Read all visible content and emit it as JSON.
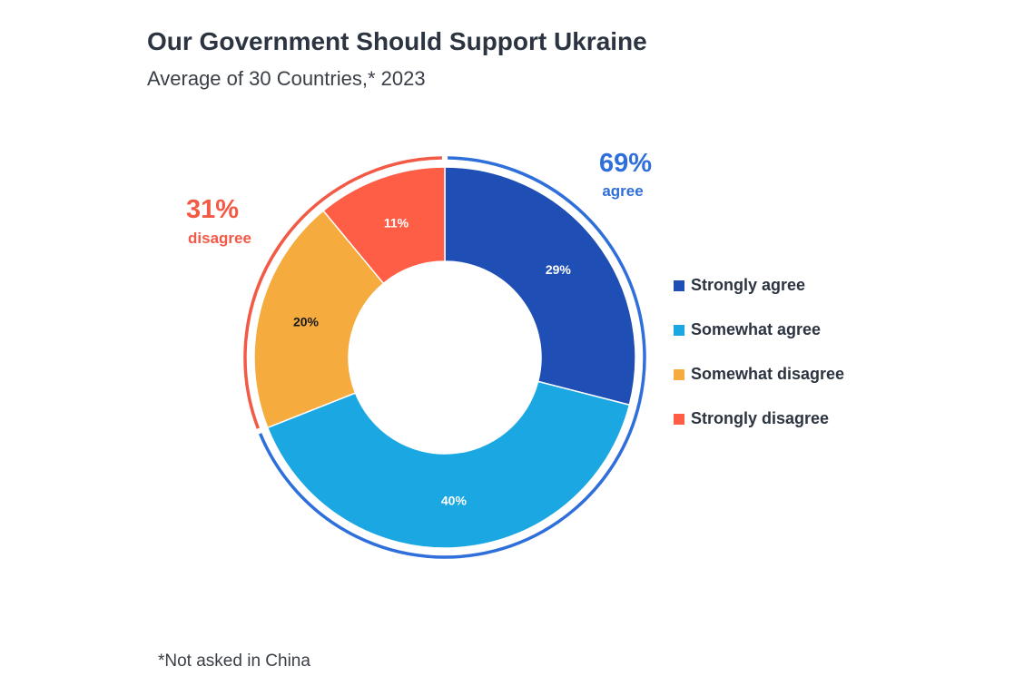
{
  "chart_data": {
    "type": "pie",
    "title": "Our Government Should Support Ukraine",
    "subtitle": "Average of 30 Countries,* 2023",
    "footnote": "*Not asked in China",
    "legend_position": "right",
    "series": [
      {
        "name": "Strongly agree",
        "value": 29,
        "label": "29%",
        "color": "#1f4eb4",
        "label_color": "#ffffff"
      },
      {
        "name": "Somewhat agree",
        "value": 40,
        "label": "40%",
        "color": "#1ba7e2",
        "label_color": "#ffffff"
      },
      {
        "name": "Somewhat disagree",
        "value": 20,
        "label": "20%",
        "color": "#f5ab3e",
        "label_color": "#1a1a1a"
      },
      {
        "name": "Strongly disagree",
        "value": 11,
        "label": "11%",
        "color": "#fd5e45",
        "label_color": "#ffffff"
      }
    ],
    "groups": [
      {
        "value": "69%",
        "label": "agree",
        "color": "#2e6fdb"
      },
      {
        "value": "31%",
        "label": "disagree",
        "color": "#f25a45"
      }
    ]
  }
}
